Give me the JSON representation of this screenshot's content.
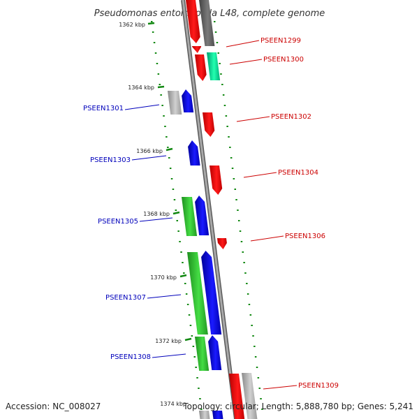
{
  "title": "Pseudomonas entomophila L48, complete genome",
  "accession": "Accession: NC_008027",
  "summary": "Topology: circular; Length: 5,888,780 bp; Genes: 5,241",
  "colors": {
    "backbone": "#8c8c8c",
    "red": "#ff0000",
    "blue": "#0000ff",
    "green": "#33cc33",
    "gray": "#b4b4b4",
    "dark_gray": "#6e6e6e",
    "teal": "#00e69a",
    "tick_green": "#118811",
    "label_red": "#cc0000",
    "label_blue": "#0000bb"
  },
  "kbp_markers": [
    "1362 kbp",
    "1364 kbp",
    "1366 kbp",
    "1368 kbp",
    "1370 kbp",
    "1372 kbp",
    "1374 kbp"
  ],
  "gene_labels_right": [
    "PSEEN1299",
    "PSEEN1300",
    "PSEEN1302",
    "PSEEN1304",
    "PSEEN1306",
    "PSEEN1309"
  ],
  "gene_labels_left": [
    "PSEEN1301",
    "PSEEN1303",
    "PSEEN1305",
    "PSEEN1307",
    "PSEEN1308"
  ]
}
